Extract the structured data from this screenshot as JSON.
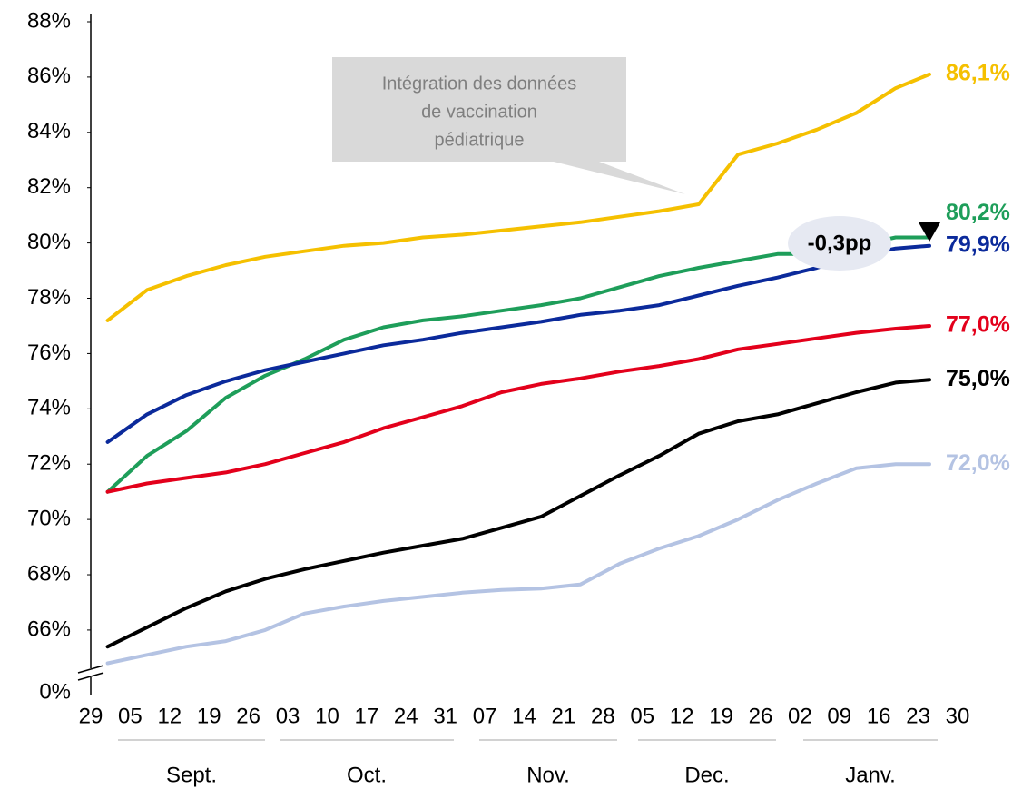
{
  "chart_data": {
    "type": "line",
    "x": [
      3,
      10,
      17,
      24,
      31,
      38,
      45,
      52,
      59,
      66,
      73,
      80,
      87,
      94,
      101,
      108,
      115,
      122,
      129,
      136,
      143,
      149
    ],
    "xlim": [
      0,
      154
    ],
    "xticks": [
      {
        "value": 0,
        "label": "29"
      },
      {
        "value": 7,
        "label": "05"
      },
      {
        "value": 14,
        "label": "12"
      },
      {
        "value": 21,
        "label": "19"
      },
      {
        "value": 28,
        "label": "26"
      },
      {
        "value": 35,
        "label": "03"
      },
      {
        "value": 42,
        "label": "10"
      },
      {
        "value": 49,
        "label": "17"
      },
      {
        "value": 56,
        "label": "24"
      },
      {
        "value": 63,
        "label": "31"
      },
      {
        "value": 70,
        "label": "07"
      },
      {
        "value": 77,
        "label": "14"
      },
      {
        "value": 84,
        "label": "21"
      },
      {
        "value": 91,
        "label": "28"
      },
      {
        "value": 98,
        "label": "05"
      },
      {
        "value": 105,
        "label": "12"
      },
      {
        "value": 112,
        "label": "19"
      },
      {
        "value": 119,
        "label": "26"
      },
      {
        "value": 126,
        "label": "02"
      },
      {
        "value": 133,
        "label": "09"
      },
      {
        "value": 140,
        "label": "16"
      },
      {
        "value": 147,
        "label": "23"
      },
      {
        "value": 154,
        "label": "30"
      }
    ],
    "months": [
      "Sept.",
      "Oct.",
      "Nov.",
      "Dec.",
      "Janv."
    ],
    "ylim": [
      64.5,
      88
    ],
    "yticks": [
      {
        "value": 66,
        "label": "66%"
      },
      {
        "value": 68,
        "label": "68%"
      },
      {
        "value": 70,
        "label": "70%"
      },
      {
        "value": 72,
        "label": "72%"
      },
      {
        "value": 74,
        "label": "74%"
      },
      {
        "value": 76,
        "label": "76%"
      },
      {
        "value": 78,
        "label": "78%"
      },
      {
        "value": 80,
        "label": "80%"
      },
      {
        "value": 82,
        "label": "82%"
      },
      {
        "value": 84,
        "label": "84%"
      },
      {
        "value": 86,
        "label": "86%"
      },
      {
        "value": 88,
        "label": "88%"
      }
    ],
    "y_break_label": "0%",
    "series": [
      {
        "color": "#f5c000",
        "values": [
          77.2,
          78.3,
          78.8,
          79.2,
          79.5,
          79.7,
          79.9,
          80.0,
          80.2,
          80.3,
          80.45,
          80.6,
          80.75,
          80.95,
          81.15,
          81.4,
          83.2,
          83.6,
          84.1,
          84.7,
          85.6,
          86.1
        ],
        "value_labels": [
          null,
          null,
          null,
          null,
          null,
          null,
          null,
          null,
          null,
          null,
          null,
          null,
          null,
          null,
          null,
          null,
          null,
          null,
          null,
          null,
          null,
          "86,1%"
        ]
      },
      {
        "color": "#1e9e5a",
        "values": [
          71.0,
          72.3,
          73.2,
          74.4,
          75.2,
          75.8,
          76.5,
          76.95,
          77.2,
          77.35,
          77.55,
          77.75,
          78.0,
          78.4,
          78.8,
          79.1,
          79.35,
          79.6,
          79.6,
          79.9,
          80.2,
          80.2
        ],
        "value_labels": [
          null,
          null,
          null,
          null,
          null,
          null,
          null,
          null,
          null,
          null,
          null,
          null,
          null,
          null,
          null,
          null,
          null,
          null,
          null,
          null,
          null,
          "80,2%"
        ]
      },
      {
        "color": "#0b2a9b",
        "values": [
          72.8,
          73.8,
          74.5,
          75.0,
          75.4,
          75.7,
          76.0,
          76.3,
          76.5,
          76.75,
          76.95,
          77.15,
          77.4,
          77.55,
          77.75,
          78.1,
          78.45,
          78.75,
          79.1,
          79.5,
          79.8,
          79.9
        ],
        "value_labels": [
          null,
          null,
          null,
          null,
          null,
          null,
          null,
          null,
          null,
          null,
          null,
          null,
          null,
          null,
          null,
          null,
          null,
          null,
          null,
          null,
          null,
          "79,9%"
        ]
      },
      {
        "color": "#e3001b",
        "values": [
          71.0,
          71.3,
          71.5,
          71.7,
          72.0,
          72.4,
          72.8,
          73.3,
          73.7,
          74.1,
          74.6,
          74.9,
          75.1,
          75.35,
          75.55,
          75.8,
          76.15,
          76.35,
          76.55,
          76.75,
          76.9,
          77.0
        ],
        "value_labels": [
          null,
          null,
          null,
          null,
          null,
          null,
          null,
          null,
          null,
          null,
          null,
          null,
          null,
          null,
          null,
          null,
          null,
          null,
          null,
          null,
          null,
          "77,0%"
        ]
      },
      {
        "color": "#000000",
        "values": [
          65.4,
          66.1,
          66.8,
          67.4,
          67.85,
          68.2,
          68.5,
          68.8,
          69.05,
          69.3,
          69.7,
          70.1,
          70.85,
          71.6,
          72.3,
          73.1,
          73.55,
          73.8,
          74.2,
          74.6,
          74.95,
          75.05
        ],
        "value_labels": [
          null,
          null,
          null,
          null,
          null,
          null,
          null,
          null,
          null,
          null,
          null,
          null,
          null,
          null,
          null,
          null,
          null,
          null,
          null,
          null,
          null,
          "75,0%"
        ]
      },
      {
        "color": "#b4c3e3",
        "values": [
          64.8,
          65.1,
          65.4,
          65.6,
          66.0,
          66.6,
          66.85,
          67.05,
          67.2,
          67.35,
          67.45,
          67.5,
          67.65,
          68.4,
          68.95,
          69.4,
          70.0,
          70.7,
          71.3,
          71.85,
          72.0,
          72.0
        ],
        "value_labels": [
          null,
          null,
          null,
          null,
          null,
          null,
          null,
          null,
          null,
          null,
          null,
          null,
          null,
          null,
          null,
          null,
          null,
          null,
          null,
          null,
          null,
          "72,0%"
        ]
      }
    ],
    "annotation_lines": [
      "Intégration des données",
      "de vaccination",
      "pédiatrique"
    ],
    "difference_label": "-0,3pp"
  }
}
